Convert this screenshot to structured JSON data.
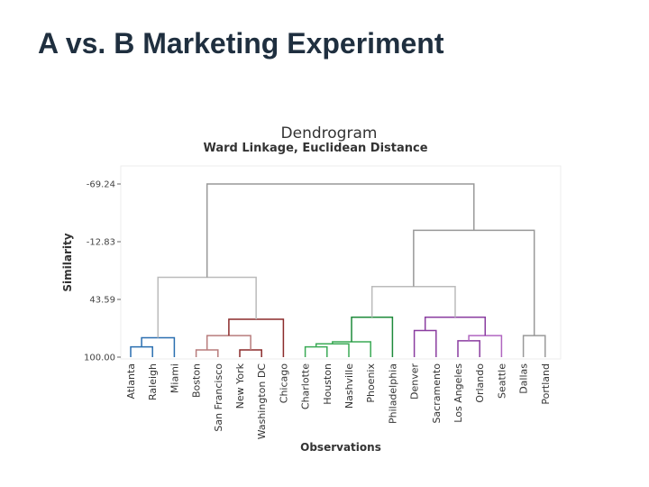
{
  "slide": {
    "title": "A vs. B Marketing Experiment"
  },
  "chart_data": {
    "type": "dendrogram",
    "title": "Dendrogram",
    "subtitle": "Ward Linkage, Euclidean Distance",
    "xlabel": "Observations",
    "ylabel": "Similarity",
    "yticks": [
      -69.24,
      -12.83,
      43.59,
      100.0
    ],
    "ytick_labels": [
      "-69.24",
      "-12.83",
      "43.59",
      "100.00"
    ],
    "ylim": [
      -80,
      100
    ],
    "leaves": [
      "Atlanta",
      "Raleigh",
      "Miami",
      "Boston",
      "San Francisco",
      "New York",
      "Washington DC",
      "Chicago",
      "Charlotte",
      "Houston",
      "Nashville",
      "Phoenix",
      "Philadelphia",
      "Denver",
      "Sacramento",
      "Los Angeles",
      "Orlando",
      "Seattle",
      "Dallas",
      "Portland"
    ],
    "merges": [
      {
        "a": "L0",
        "b": "L1",
        "sim": 90,
        "color": "#2a6fb0"
      },
      {
        "a": "M0",
        "b": "L2",
        "sim": 81,
        "color": "#2a6fb0"
      },
      {
        "a": "L3",
        "b": "L4",
        "sim": 93,
        "color": "#b87c7c"
      },
      {
        "a": "L5",
        "b": "L6",
        "sim": 93,
        "color": "#8b2b2b"
      },
      {
        "a": "M2",
        "b": "M3",
        "sim": 79,
        "color": "#b87c7c"
      },
      {
        "a": "M4",
        "b": "L7",
        "sim": 63,
        "color": "#8b2b2b"
      },
      {
        "a": "M1",
        "b": "M5",
        "sim": 22,
        "color": "#bbbbbb"
      },
      {
        "a": "L8",
        "b": "L9",
        "sim": 90,
        "color": "#3aaa55"
      },
      {
        "a": "M7",
        "b": "L10",
        "sim": 87,
        "color": "#3aaa55"
      },
      {
        "a": "M8",
        "b": "L11",
        "sim": 85,
        "color": "#3aaa55"
      },
      {
        "a": "M9",
        "b": "L12",
        "sim": 61,
        "color": "#1e8a3a"
      },
      {
        "a": "L13",
        "b": "L14",
        "sim": 74,
        "color": "#8a3da0"
      },
      {
        "a": "L15",
        "b": "L16",
        "sim": 84,
        "color": "#8a3da0"
      },
      {
        "a": "M12",
        "b": "L17",
        "sim": 79,
        "color": "#b065c0"
      },
      {
        "a": "M11",
        "b": "M13",
        "sim": 61,
        "color": "#8a3da0"
      },
      {
        "a": "M10",
        "b": "M14",
        "sim": 31,
        "color": "#bbbbbb"
      },
      {
        "a": "L18",
        "b": "L19",
        "sim": 79,
        "color": "#999999"
      },
      {
        "a": "M15",
        "b": "M16",
        "sim": -24,
        "color": "#999999"
      },
      {
        "a": "M6",
        "b": "M17",
        "sim": -69.24,
        "color": "#999999"
      }
    ]
  }
}
